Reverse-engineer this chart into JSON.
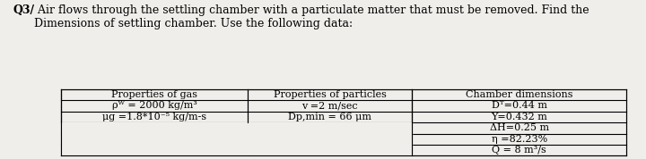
{
  "title_bold": "Q3/",
  "title_text": " Air flows through the settling chamber with a particulate matter that must be removed. Find the\nDimensions of settling chamber. Use the following data:",
  "col_headers": [
    "Properties of gas",
    "Properties of particles",
    "Chamber dimensions"
  ],
  "col1_rows": [
    "ρᵂ = 2000 kg/m³",
    "μg =1.8*10⁻⁵ kg/m-s"
  ],
  "col2_rows": [
    "v =2 m/sec",
    "Dp,min = 66 μm"
  ],
  "col3_rows": [
    "Dᵀ=0.44 m",
    "Y=0.432 m",
    "ΔH=0.25 m",
    "η =82.23%",
    "Q = 8 m³/s"
  ],
  "bg_color": "#f0eeeb",
  "text_color": "#000000",
  "font_family": "serif"
}
